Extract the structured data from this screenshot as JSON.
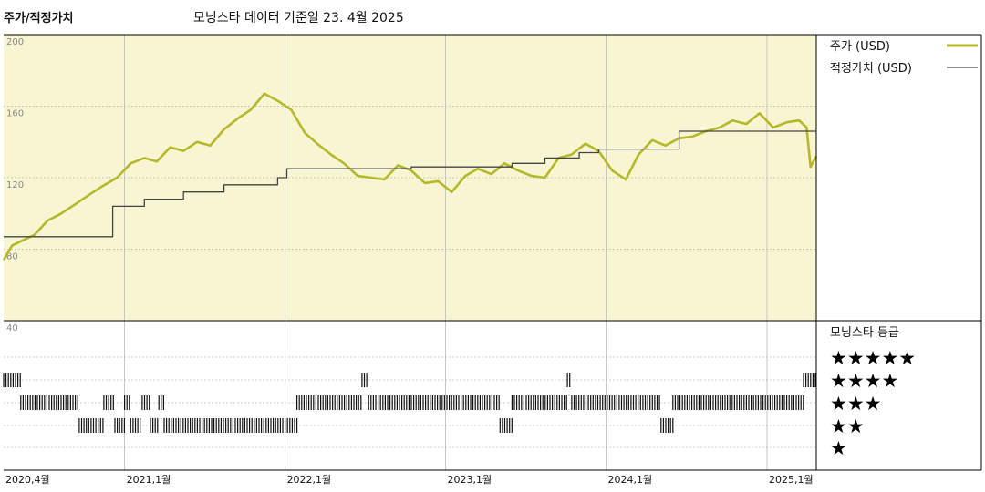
{
  "header": {
    "title": "주가/적정가치",
    "subtitle": "모닝스타 데이터 기준일 23. 4월 2025"
  },
  "colors": {
    "price": "#b5b829",
    "fair": "#444444",
    "plot_bg": "#f8f5d2",
    "grid": "#999999"
  },
  "chart_data": {
    "type": "line",
    "xlim": [
      "2020-04-01",
      "2025-04-23"
    ],
    "ylim": [
      40,
      200
    ],
    "y_ticks": [
      200,
      160,
      120,
      80,
      40
    ],
    "x_ticks": [
      {
        "date": "2020-04-01",
        "label": "2020,4월"
      },
      {
        "date": "2021-01-01",
        "label": "2021,1월"
      },
      {
        "date": "2022-01-01",
        "label": "2022,1월"
      },
      {
        "date": "2023-01-01",
        "label": "2023,1월"
      },
      {
        "date": "2024-01-01",
        "label": "2024,1월"
      },
      {
        "date": "2025-01-01",
        "label": "2025,1월"
      }
    ],
    "grid": true,
    "legend_position": "right",
    "series": [
      {
        "name": "주가 (USD)",
        "x": [
          "2020-04-01",
          "2020-04-20",
          "2020-05-15",
          "2020-06-10",
          "2020-07-10",
          "2020-08-10",
          "2020-09-10",
          "2020-10-10",
          "2020-11-10",
          "2020-12-15",
          "2021-01-15",
          "2021-02-15",
          "2021-03-15",
          "2021-04-15",
          "2021-05-15",
          "2021-06-15",
          "2021-07-15",
          "2021-08-15",
          "2021-09-15",
          "2021-10-15",
          "2021-11-15",
          "2021-12-15",
          "2022-01-15",
          "2022-02-15",
          "2022-03-15",
          "2022-04-15",
          "2022-05-15",
          "2022-06-15",
          "2022-07-15",
          "2022-08-15",
          "2022-09-15",
          "2022-10-15",
          "2022-11-15",
          "2022-12-15",
          "2023-01-15",
          "2023-02-15",
          "2023-03-15",
          "2023-04-15",
          "2023-05-15",
          "2023-06-15",
          "2023-07-15",
          "2023-08-15",
          "2023-09-15",
          "2023-10-15",
          "2023-11-15",
          "2023-12-15",
          "2024-01-15",
          "2024-02-15",
          "2024-03-15",
          "2024-04-15",
          "2024-05-15",
          "2024-06-15",
          "2024-07-15",
          "2024-08-15",
          "2024-09-15",
          "2024-10-15",
          "2024-11-15",
          "2024-12-15",
          "2025-01-15",
          "2025-02-15",
          "2025-03-15",
          "2025-04-01",
          "2025-04-10",
          "2025-04-23"
        ],
        "y": [
          74,
          82,
          85,
          88,
          96,
          100,
          105,
          110,
          115,
          120,
          128,
          131,
          129,
          137,
          135,
          140,
          138,
          147,
          153,
          158,
          167,
          163,
          158,
          145,
          139,
          133,
          128,
          121,
          120,
          119,
          127,
          124,
          117,
          118,
          112,
          121,
          125,
          122,
          128,
          124,
          121,
          120,
          131,
          133,
          139,
          135,
          124,
          119,
          133,
          141,
          138,
          142,
          143,
          146,
          148,
          152,
          150,
          156,
          148,
          151,
          152,
          148,
          126,
          132
        ]
      },
      {
        "name": "적정가치 (USD)",
        "x": [
          "2020-04-01",
          "2020-12-05",
          "2020-12-05",
          "2021-02-15",
          "2021-02-15",
          "2021-05-15",
          "2021-05-15",
          "2021-08-15",
          "2021-08-15",
          "2021-12-15",
          "2021-12-15",
          "2022-01-05",
          "2022-01-05",
          "2022-10-15",
          "2022-10-15",
          "2023-06-01",
          "2023-06-01",
          "2023-08-15",
          "2023-08-15",
          "2023-11-01",
          "2023-11-01",
          "2023-12-15",
          "2023-12-15",
          "2024-06-15",
          "2024-06-15",
          "2025-04-23"
        ],
        "y": [
          87,
          87,
          104,
          104,
          108,
          108,
          112,
          112,
          116,
          116,
          120,
          120,
          125,
          125,
          126,
          126,
          128,
          128,
          131,
          131,
          134,
          134,
          136,
          136,
          146,
          146
        ]
      }
    ],
    "rating_panel": {
      "title": "모닝스타 등급",
      "levels": [
        "★★★★★",
        "★★★★",
        "★★★",
        "★★",
        "★"
      ],
      "segments": [
        {
          "stars": 4,
          "start": "2020-04-01",
          "end": "2020-05-10"
        },
        {
          "stars": 3,
          "start": "2020-05-10",
          "end": "2020-09-20"
        },
        {
          "stars": 2,
          "start": "2020-09-20",
          "end": "2020-11-15"
        },
        {
          "stars": 3,
          "start": "2020-11-15",
          "end": "2020-12-10"
        },
        {
          "stars": 2,
          "start": "2020-12-10",
          "end": "2021-01-01"
        },
        {
          "stars": 3,
          "start": "2021-01-01",
          "end": "2021-01-15"
        },
        {
          "stars": 2,
          "start": "2021-01-15",
          "end": "2021-02-10"
        },
        {
          "stars": 3,
          "start": "2021-02-10",
          "end": "2021-03-01"
        },
        {
          "stars": 2,
          "start": "2021-03-01",
          "end": "2021-03-20"
        },
        {
          "stars": 3,
          "start": "2021-03-20",
          "end": "2021-04-01"
        },
        {
          "stars": 2,
          "start": "2021-04-01",
          "end": "2022-01-28"
        },
        {
          "stars": 3,
          "start": "2022-01-28",
          "end": "2022-06-25"
        },
        {
          "stars": 4,
          "start": "2022-06-25",
          "end": "2022-07-10"
        },
        {
          "stars": 3,
          "start": "2022-07-10",
          "end": "2023-05-05"
        },
        {
          "stars": 2,
          "start": "2023-05-05",
          "end": "2023-06-01"
        },
        {
          "stars": 3,
          "start": "2023-06-01",
          "end": "2023-10-05"
        },
        {
          "stars": 4,
          "start": "2023-10-05",
          "end": "2023-10-15"
        },
        {
          "stars": 3,
          "start": "2023-10-15",
          "end": "2024-05-05"
        },
        {
          "stars": 2,
          "start": "2024-05-05",
          "end": "2024-06-01"
        },
        {
          "stars": 3,
          "start": "2024-06-01",
          "end": "2025-03-25"
        },
        {
          "stars": 4,
          "start": "2025-03-25",
          "end": "2025-04-23"
        }
      ]
    }
  }
}
